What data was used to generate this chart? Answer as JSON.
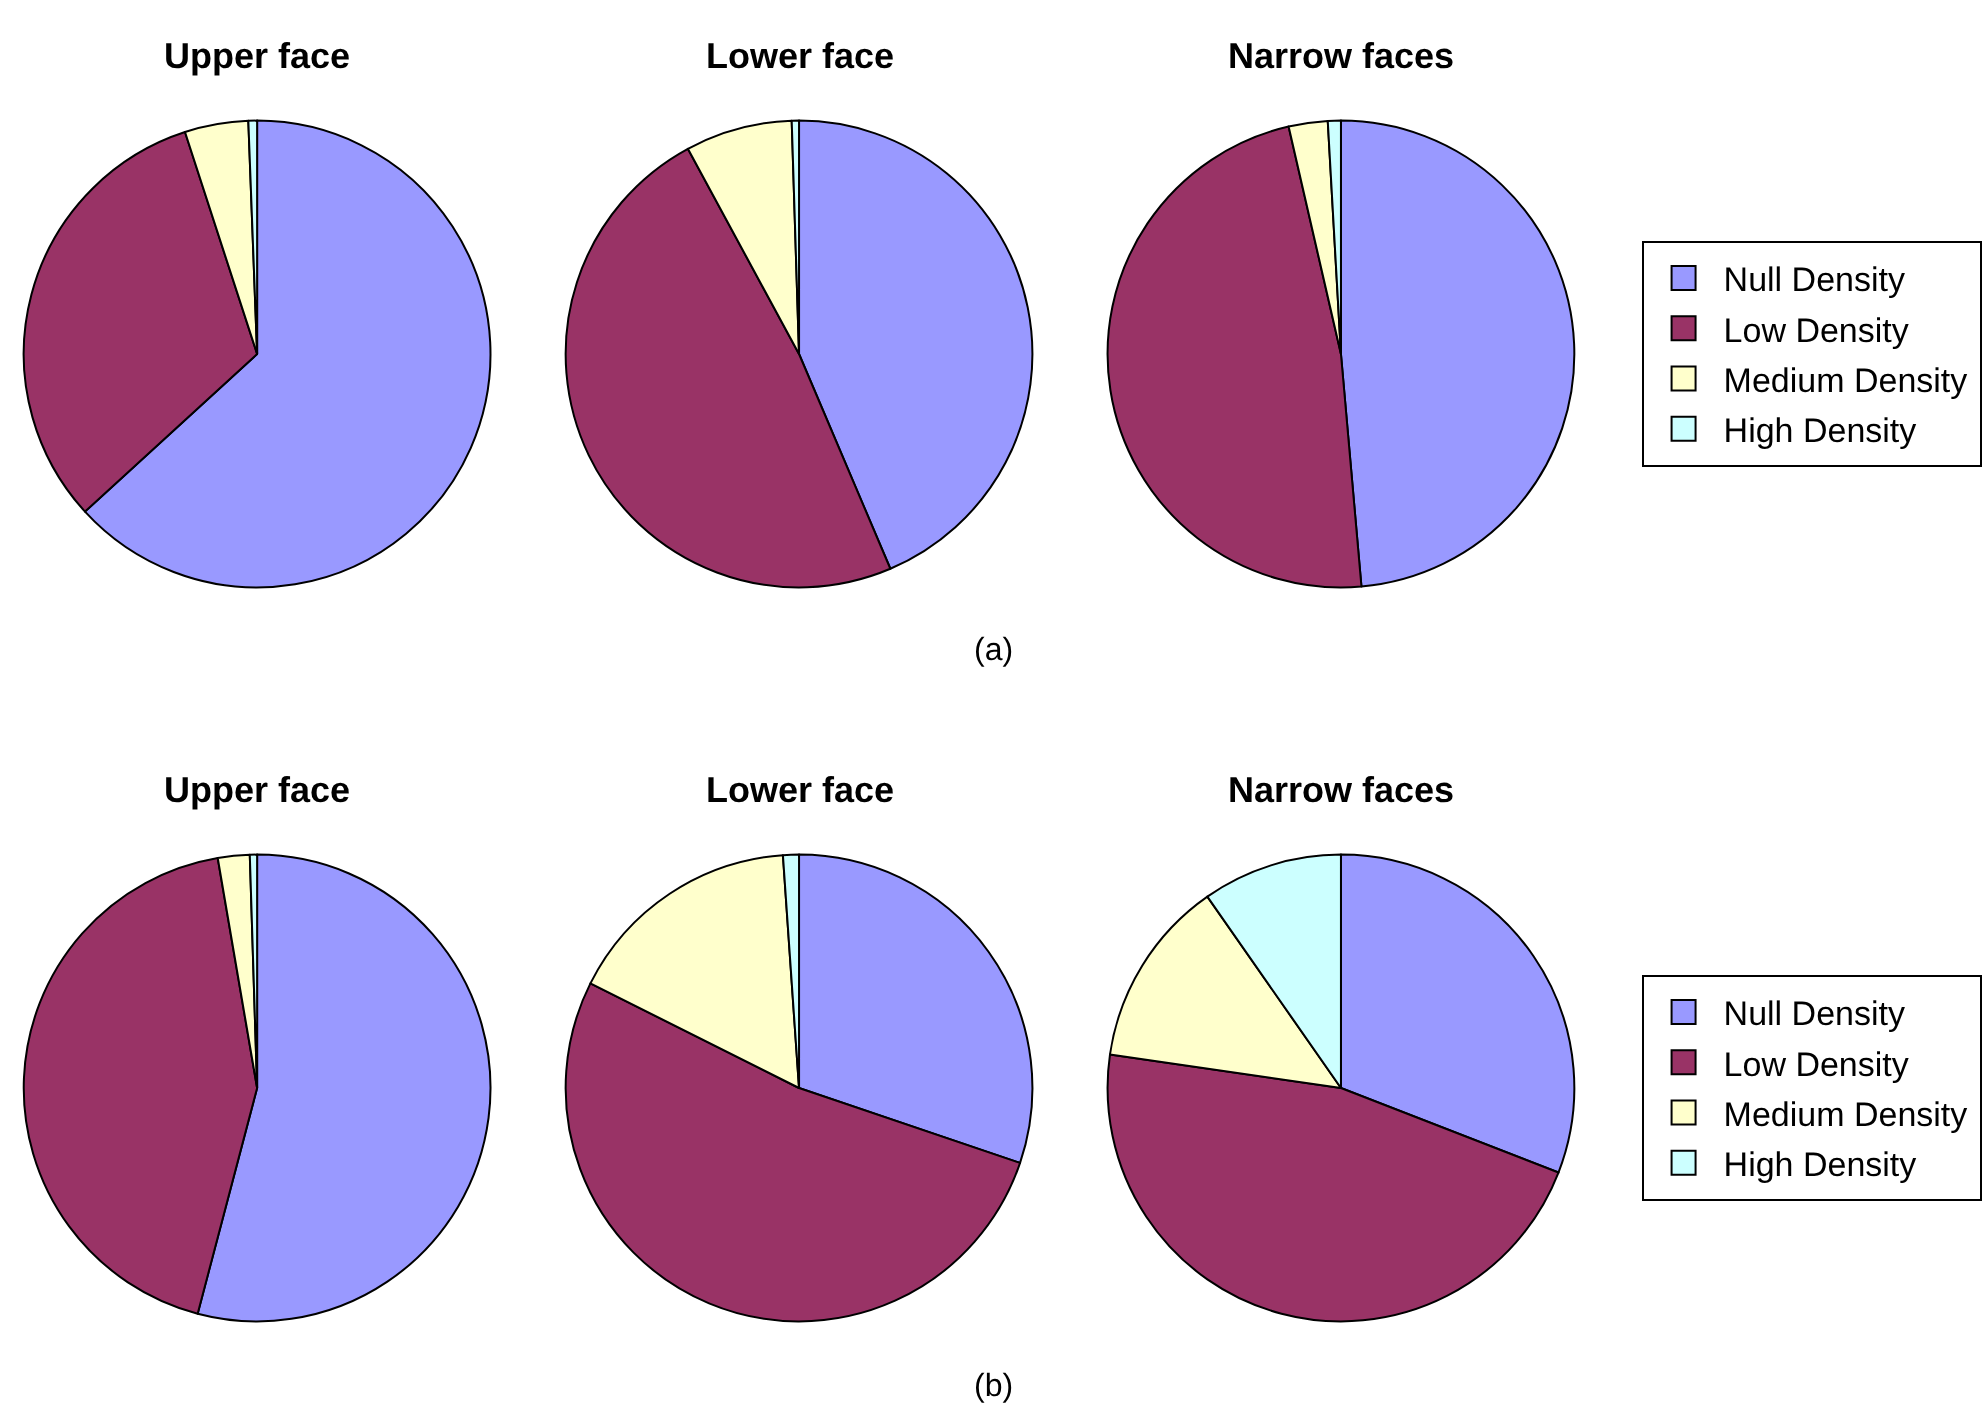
{
  "chart_data": [
    {
      "type": "pie",
      "categories": [
        "Null Density",
        "Low Density",
        "Medium Density",
        "High Density"
      ],
      "colors": [
        "#9999ff",
        "#993366",
        "#ffffcc",
        "#ccffff"
      ],
      "series": [
        {
          "name": "Upper face",
          "values": [
            63.2,
            31.8,
            4.4,
            0.6
          ]
        },
        {
          "name": "Lower face",
          "values": [
            43.6,
            48.5,
            7.4,
            0.5
          ]
        },
        {
          "name": "Narrow faces",
          "values": [
            48.6,
            47.8,
            2.7,
            0.9
          ]
        }
      ],
      "annotations": [
        "(a)"
      ],
      "legend": "right"
    },
    {
      "type": "pie",
      "categories": [
        "Null Density",
        "Low Density",
        "Medium Density",
        "High Density"
      ],
      "colors": [
        "#9999ff",
        "#993366",
        "#ffffcc",
        "#ccffff"
      ],
      "series": [
        {
          "name": "Upper face",
          "values": [
            54.1,
            43.2,
            2.2,
            0.5
          ]
        },
        {
          "name": "Lower face",
          "values": [
            30.2,
            52.2,
            16.5,
            1.1
          ]
        },
        {
          "name": "Narrow faces",
          "values": [
            30.9,
            46.4,
            13.0,
            9.7
          ]
        }
      ],
      "annotations": [
        "(b)"
      ],
      "legend": "right"
    }
  ]
}
